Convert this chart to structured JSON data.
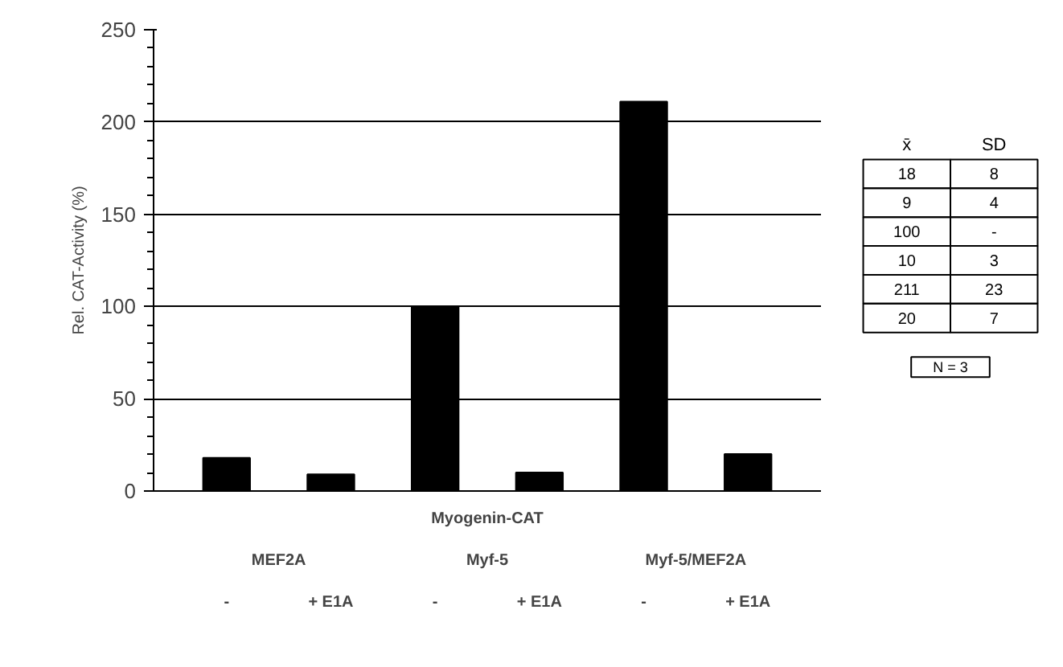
{
  "chart_data": [
    {
      "type": "bar",
      "ylabel": "Rel. CAT-Activity (%)",
      "categories": [
        "-",
        "+ E1A",
        "-",
        "+ E1A",
        "-",
        "+ E1A"
      ],
      "values": [
        18,
        9,
        100,
        10,
        211,
        20
      ],
      "color": "#000000",
      "ylim": [
        0,
        250
      ],
      "yticks": [
        0,
        50,
        100,
        150,
        200,
        250
      ],
      "grid": "y",
      "annotations": [
        "Myogenin-CAT",
        "MEF2A",
        "Myf-5",
        "Myf-5/MEF2A"
      ]
    },
    {
      "type": "other",
      "annotations": [
        "x̄",
        "SD",
        "18",
        "8",
        "9",
        "4",
        "100",
        "-",
        "10",
        "3",
        "211",
        "23",
        "20",
        "7",
        "N = 3"
      ]
    }
  ]
}
